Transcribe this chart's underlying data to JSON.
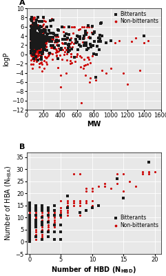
{
  "panel_A_label": "A",
  "panel_B_label": "B",
  "colors": {
    "bitterants": "#1a1a1a",
    "non_bitterants": "#cc0000"
  },
  "panel_A": {
    "xlabel": "MW",
    "ylabel": "logP",
    "xlim": [
      0,
      1600
    ],
    "ylim": [
      -12,
      10
    ],
    "xticks": [
      0,
      200,
      400,
      600,
      800,
      1000,
      1200,
      1400,
      1600
    ],
    "yticks": [
      -12,
      -10,
      -8,
      -6,
      -4,
      -2,
      0,
      2,
      4,
      6,
      8,
      10
    ]
  },
  "panel_B": {
    "xlabel": "Number of HBD (N_{HBD})",
    "ylabel": "Number of HBA (N_{HBA})",
    "xlim": [
      -0.5,
      21
    ],
    "ylim": [
      -5,
      37
    ],
    "xticks": [
      0,
      5,
      10,
      15,
      20
    ],
    "yticks": [
      -5,
      0,
      5,
      10,
      15,
      20,
      25,
      30,
      35
    ]
  },
  "marker_size": 5,
  "legend_fontsize": 5.5,
  "label_fontsize": 7,
  "tick_fontsize": 6,
  "background_color": "#e8e8e8"
}
